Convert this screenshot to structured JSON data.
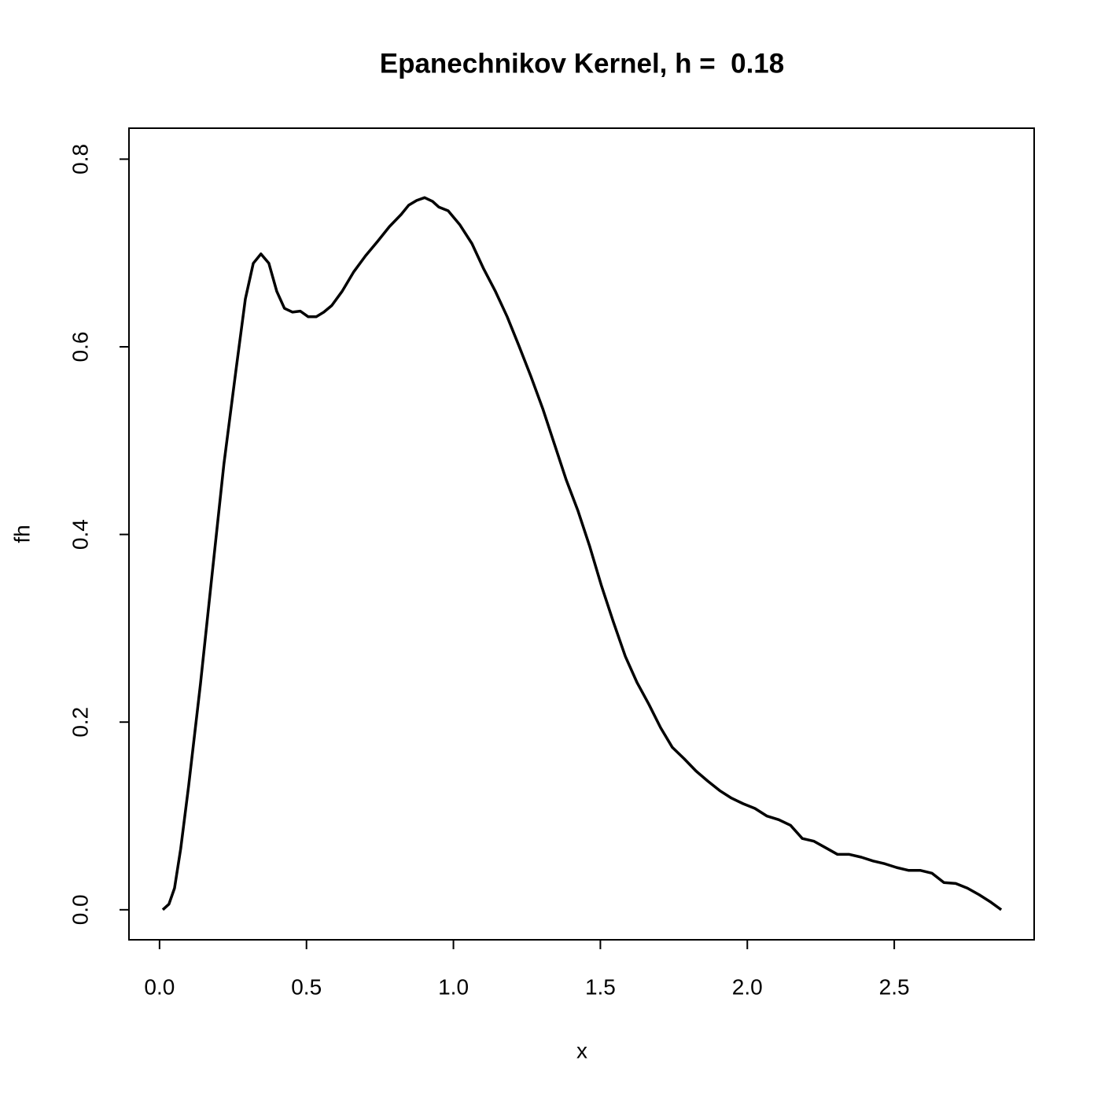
{
  "chart_data": {
    "type": "line",
    "title": "Epanechnikov Kernel, h =  0.18",
    "x_label": "x",
    "y_label": "fh",
    "x": [
      0.011,
      0.032,
      0.051,
      0.072,
      0.099,
      0.139,
      0.179,
      0.219,
      0.26,
      0.292,
      0.319,
      0.345,
      0.372,
      0.399,
      0.425,
      0.452,
      0.479,
      0.506,
      0.533,
      0.559,
      0.586,
      0.621,
      0.661,
      0.701,
      0.741,
      0.782,
      0.822,
      0.848,
      0.875,
      0.902,
      0.929,
      0.95,
      0.982,
      1.022,
      1.063,
      1.103,
      1.143,
      1.183,
      1.223,
      1.263,
      1.304,
      1.344,
      1.384,
      1.424,
      1.464,
      1.504,
      1.544,
      1.585,
      1.625,
      1.665,
      1.705,
      1.745,
      1.785,
      1.825,
      1.866,
      1.906,
      1.946,
      1.986,
      2.026,
      2.066,
      2.107,
      2.147,
      2.187,
      2.227,
      2.267,
      2.307,
      2.347,
      2.388,
      2.428,
      2.468,
      2.508,
      2.548,
      2.588,
      2.628,
      2.669,
      2.709,
      2.749,
      2.789,
      2.829,
      2.864
    ],
    "series": [
      {
        "name": "fh",
        "color": "#000000",
        "values": [
          0.0,
          0.006,
          0.023,
          0.065,
          0.132,
          0.24,
          0.358,
          0.475,
          0.575,
          0.651,
          0.689,
          0.699,
          0.689,
          0.659,
          0.641,
          0.637,
          0.638,
          0.632,
          0.632,
          0.637,
          0.644,
          0.659,
          0.68,
          0.697,
          0.712,
          0.728,
          0.741,
          0.751,
          0.756,
          0.759,
          0.755,
          0.749,
          0.745,
          0.73,
          0.71,
          0.683,
          0.659,
          0.632,
          0.601,
          0.569,
          0.534,
          0.496,
          0.458,
          0.425,
          0.387,
          0.345,
          0.307,
          0.27,
          0.242,
          0.219,
          0.194,
          0.173,
          0.161,
          0.148,
          0.137,
          0.127,
          0.119,
          0.113,
          0.108,
          0.1,
          0.096,
          0.09,
          0.076,
          0.073,
          0.066,
          0.059,
          0.059,
          0.056,
          0.052,
          0.049,
          0.045,
          0.042,
          0.042,
          0.039,
          0.029,
          0.028,
          0.023,
          0.016,
          0.008,
          0.0
        ]
      }
    ],
    "xlim": [
      -0.104,
      2.976
    ],
    "ylim": [
      -0.032,
      0.833
    ],
    "xticks": [
      {
        "value": 0,
        "label": "0.0"
      },
      0.5,
      {
        "value": 1,
        "label": "1.0"
      },
      1.5,
      {
        "value": 2,
        "label": "2.0"
      },
      2.5
    ],
    "yticks": [
      {
        "value": 0,
        "label": "0.0"
      },
      0.2,
      0.4,
      0.6,
      0.8
    ]
  }
}
